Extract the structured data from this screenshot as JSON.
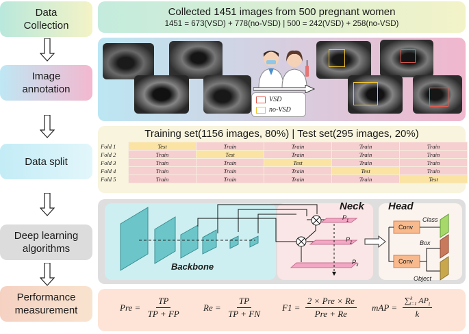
{
  "stages": {
    "data_collection": [
      "Data",
      "Collection"
    ],
    "image_annotation": [
      "Image",
      "annotation"
    ],
    "data_split": [
      "Data split"
    ],
    "deep_learning": [
      "Deep learning",
      "algorithms"
    ],
    "performance": [
      "Performance",
      "measurement"
    ]
  },
  "data_collection": {
    "line1": "Collected 1451 images from 500 pregnant women",
    "line2": "1451 = 673(VSD) + 778(no-VSD) | 500 = 242(VSD) + 258(no-VSD)"
  },
  "annotation": {
    "legend": {
      "vsd": "VSD",
      "no_vsd": "no-VSD"
    },
    "colors": {
      "vsd": "#e05a4e",
      "no_vsd": "#f0c330"
    }
  },
  "data_split": {
    "title": "Training set(1156 images, 80%) | Test set(295 images, 20%)",
    "folds": [
      {
        "name": "Fold 1",
        "cells": [
          "Test",
          "Train",
          "Train",
          "Train",
          "Train"
        ]
      },
      {
        "name": "Fold 2",
        "cells": [
          "Train",
          "Test",
          "Train",
          "Train",
          "Train"
        ]
      },
      {
        "name": "Fold 3",
        "cells": [
          "Train",
          "Train",
          "Test",
          "Train",
          "Train"
        ]
      },
      {
        "name": "Fold 4",
        "cells": [
          "Train",
          "Train",
          "Train",
          "Test",
          "Train"
        ]
      },
      {
        "name": "Fold 5",
        "cells": [
          "Train",
          "Train",
          "Train",
          "Train",
          "Test"
        ]
      }
    ]
  },
  "network": {
    "backbone": "Backbone",
    "neck": "Neck",
    "head": "Head",
    "p1": "P",
    "p1_sub": "1",
    "p2": "P",
    "p2_sub": "2",
    "p3": "P",
    "p3_sub": "3",
    "conv1": "Conv",
    "conv2": "Conv",
    "class": "Class",
    "box": "Box",
    "object": "Object"
  },
  "metrics": {
    "pre": {
      "lhs": "Pre",
      "num": "TP",
      "den": "TP + FP"
    },
    "re": {
      "lhs": "Re",
      "num": "TP",
      "den": "TP + FN"
    },
    "f1": {
      "lhs": "F1",
      "num": "2 × Pre × Re",
      "den": "Pre + Re"
    },
    "map": {
      "lhs": "mAP",
      "num": "∑ APi",
      "sum_top": "k",
      "sum_bottom": "i=1",
      "den": "k"
    }
  }
}
